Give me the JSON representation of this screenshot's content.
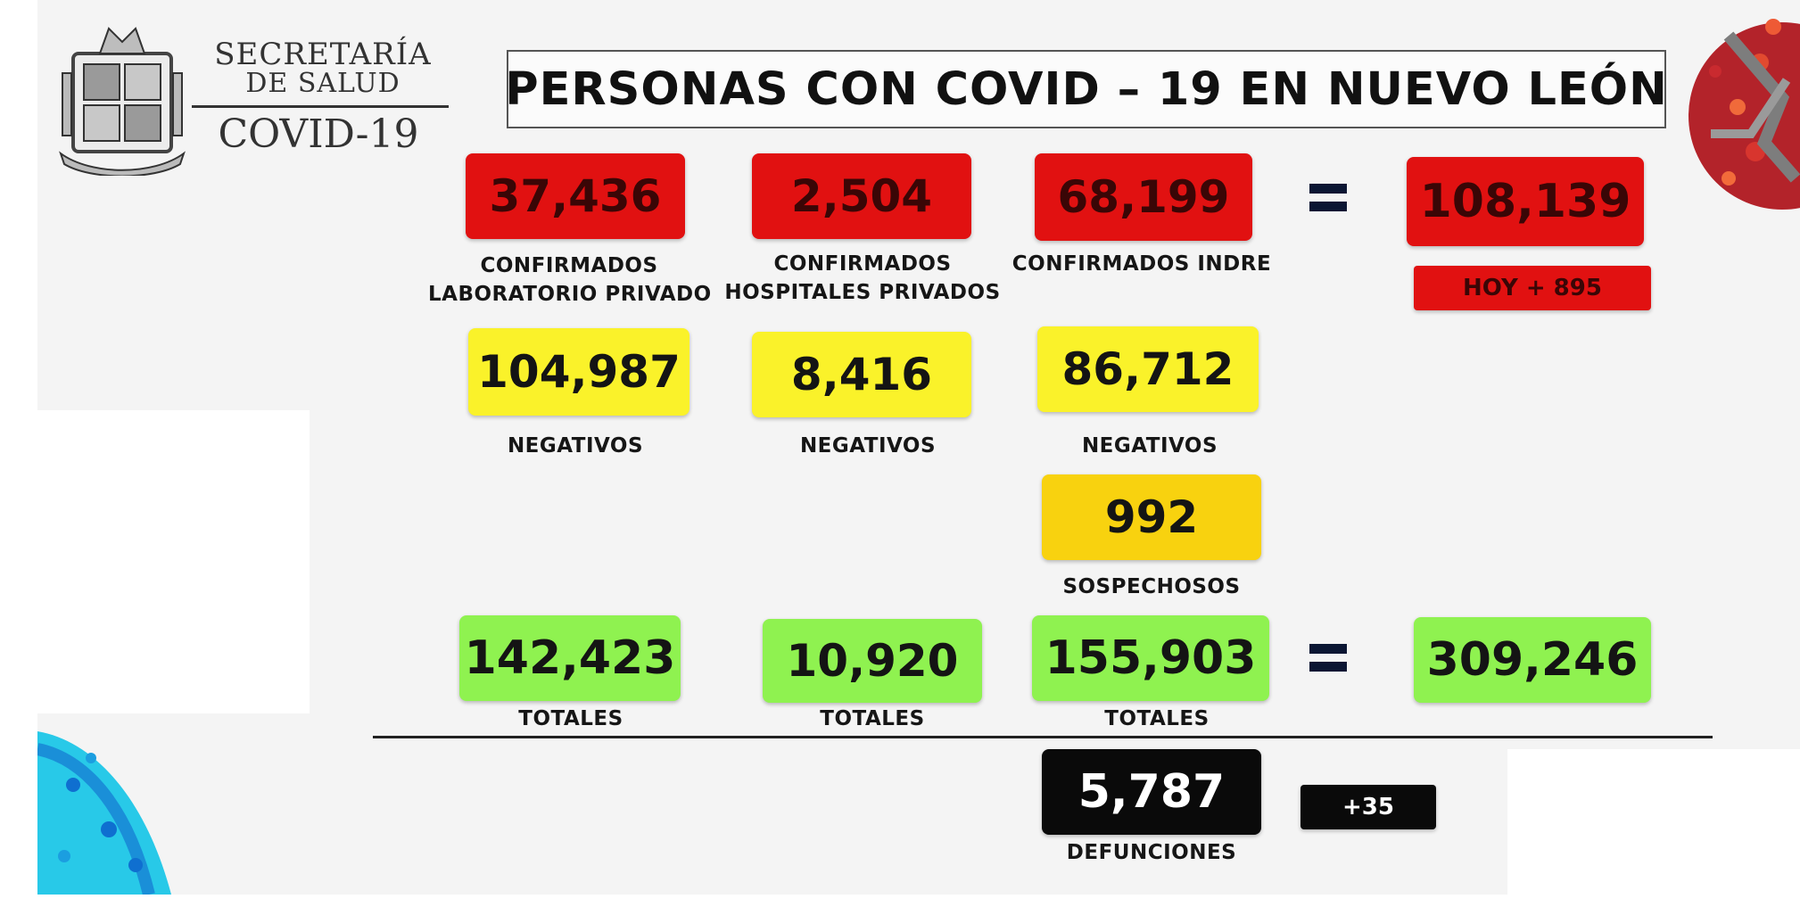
{
  "header": {
    "agency_line1": "SECRETARÍA",
    "agency_line2": "DE SALUD",
    "agency_subtitle": "COVID-19",
    "title": "PERSONAS CON COVID – 19 EN NUEVO LEÓN"
  },
  "confirmed": {
    "lab_privado": {
      "value": "37,436",
      "label_line1": "CONFIRMADOS",
      "label_line2": "LABORATORIO PRIVADO"
    },
    "hosp_privados": {
      "value": "2,504",
      "label_line1": "CONFIRMADOS",
      "label_line2": "HOSPITALES PRIVADOS"
    },
    "indre": {
      "value": "68,199",
      "label": "CONFIRMADOS INDRE"
    },
    "total": {
      "value": "108,139",
      "today": "HOY + 895"
    }
  },
  "negatives": {
    "col1": {
      "value": "104,987",
      "label": "NEGATIVOS"
    },
    "col2": {
      "value": "8,416",
      "label": "NEGATIVOS"
    },
    "col3": {
      "value": "86,712",
      "label": "NEGATIVOS"
    }
  },
  "suspects": {
    "value": "992",
    "label": "SOSPECHOSOS"
  },
  "totals": {
    "col1": {
      "value": "142,423",
      "label": "TOTALES"
    },
    "col2": {
      "value": "10,920",
      "label": "TOTALES"
    },
    "col3": {
      "value": "155,903",
      "label": "TOTALES"
    },
    "grand": {
      "value": "309,246"
    }
  },
  "deaths": {
    "value": "5,787",
    "label": "DEFUNCIONES",
    "delta": "+35"
  },
  "colors": {
    "confirmed": "#e11111",
    "negatives": "#faf22a",
    "suspects": "#f8d20f",
    "totals": "#8ff250",
    "deaths": "#0a0a0a"
  },
  "icons": {
    "logo": "nuevo-leon-coat-of-arms",
    "equals": "equals-sign-icon",
    "decor_top_right": "coronavirus-red-decoration",
    "decor_bottom_left": "coronavirus-blue-decoration"
  }
}
